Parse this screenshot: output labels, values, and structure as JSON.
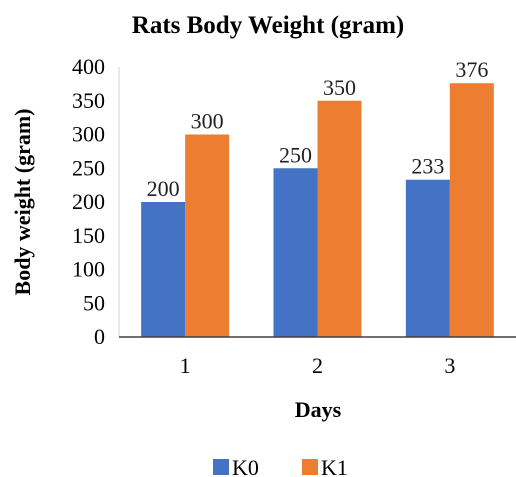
{
  "chart_data": {
    "type": "bar",
    "title": "Rats Body Weight (gram)",
    "xlabel": "Days",
    "ylabel": "Body weight (gram)",
    "categories": [
      "1",
      "2",
      "3"
    ],
    "series": [
      {
        "name": "K0",
        "color": "#4472C4",
        "values": [
          200,
          250,
          233
        ]
      },
      {
        "name": "K1",
        "color": "#ED7D31",
        "values": [
          300,
          350,
          376
        ]
      }
    ],
    "ylim": [
      0,
      400
    ],
    "yticks": [
      0,
      50,
      100,
      150,
      200,
      250,
      300,
      350,
      400
    ],
    "grid": false,
    "legend": "bottom"
  }
}
